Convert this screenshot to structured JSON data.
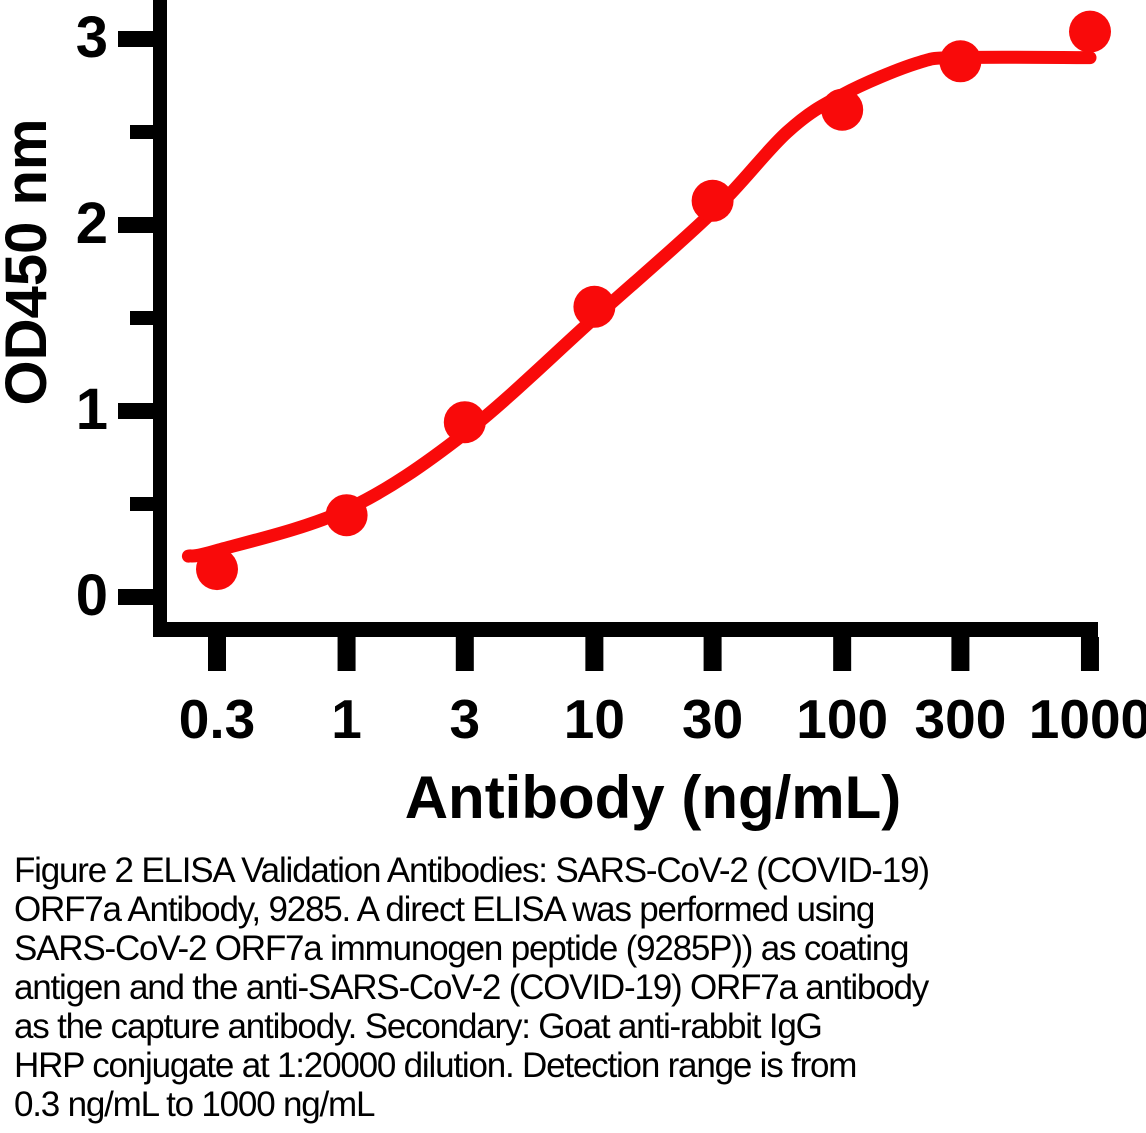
{
  "figure": {
    "caption_lines": [
      "Figure 2 ELISA Validation Antibodies: SARS-CoV-2 (COVID-19)",
      "ORF7a Antibody, 9285. A direct ELISA was performed using",
      "SARS-CoV-2 ORF7a immunogen peptide (9285P)) as coating",
      "antigen and the anti-SARS-CoV-2 (COVID-19) ORF7a antibody",
      "as the capture antibody. Secondary: Goat anti-rabbit IgG",
      "HRP conjugate at 1:20000 dilution. Detection range is from",
      "0.3 ng/mL to 1000 ng/mL"
    ]
  },
  "chart_data": {
    "type": "scatter",
    "title": "",
    "xlabel": "Antibody (ng/mL)",
    "ylabel": "OD450 nm",
    "x_scale": "log",
    "x": [
      0.3,
      1,
      3,
      10,
      30,
      100,
      300,
      1000
    ],
    "values": [
      0.15,
      0.44,
      0.94,
      1.56,
      2.13,
      2.62,
      2.88,
      3.04
    ],
    "fit_curve_x": [
      0.23,
      0.3,
      1,
      3,
      10,
      30,
      60,
      100,
      200,
      300,
      1000
    ],
    "fit_curve_values": [
      0.22,
      0.25,
      0.47,
      0.88,
      1.5,
      2.07,
      2.5,
      2.7,
      2.87,
      2.9,
      2.9
    ],
    "x_tick_labels": [
      "0.3",
      "1",
      "3",
      "10",
      "30",
      "100",
      "300",
      "1000"
    ],
    "y_ticks": [
      0,
      1,
      2,
      3
    ],
    "y_tick_labels": [
      "0",
      "1",
      "2",
      "3"
    ],
    "y_minor_ticks": [
      0.5,
      1.5,
      2.5
    ],
    "xlim": [
      0.2,
      1100
    ],
    "ylim": [
      -0.1,
      3.2
    ],
    "grid": "off",
    "legend": "none",
    "colors": {
      "curve": "#f90a0a",
      "marker": "#f90a0a",
      "axis": "#000000",
      "background": "#ffffff"
    }
  }
}
